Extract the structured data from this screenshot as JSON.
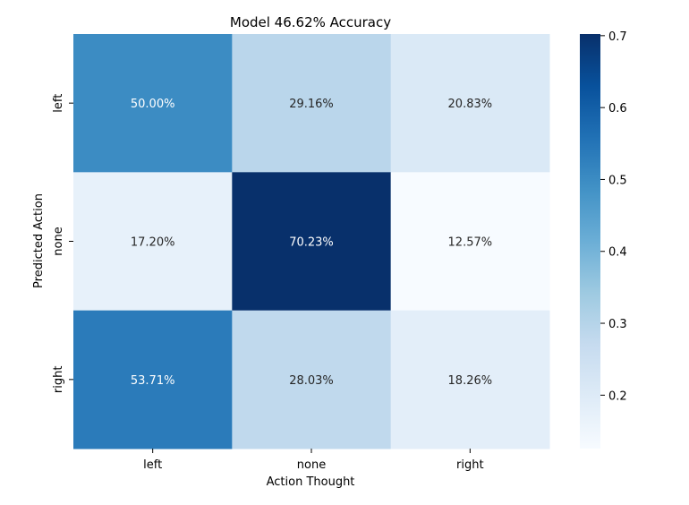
{
  "chart_data": {
    "type": "heatmap",
    "title": "Model 46.62% Accuracy",
    "xlabel": "Action Thought",
    "ylabel": "Predicted Action",
    "x_categories": [
      "left",
      "none",
      "right"
    ],
    "y_categories": [
      "left",
      "none",
      "right"
    ],
    "values": [
      [
        0.5,
        0.2916,
        0.2083
      ],
      [
        0.172,
        0.7023,
        0.1257
      ],
      [
        0.5371,
        0.2803,
        0.1826
      ]
    ],
    "cell_labels": [
      [
        "50.00%",
        "29.16%",
        "20.83%"
      ],
      [
        "17.20%",
        "70.23%",
        "12.57%"
      ],
      [
        "53.71%",
        "28.03%",
        "18.26%"
      ]
    ],
    "colormap": "Blues",
    "color_range": [
      0.1257,
      0.7023
    ],
    "colorbar_ticks": [
      0.2,
      0.3,
      0.4,
      0.5,
      0.6,
      0.7
    ],
    "colorbar_tick_labels": [
      "0.2",
      "0.3",
      "0.4",
      "0.5",
      "0.6",
      "0.7"
    ],
    "legend": "colorbar-right",
    "grid": false
  }
}
